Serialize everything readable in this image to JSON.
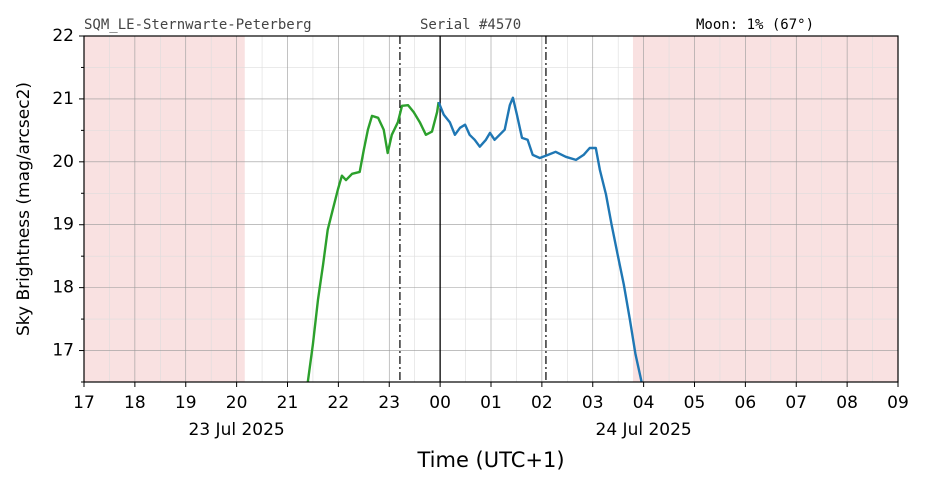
{
  "chart_data": {
    "type": "line",
    "header": {
      "location": "SQM_LE-Sternwarte-Peterberg",
      "serial": "Serial #4570",
      "moon": "Moon: 1% (67°)"
    },
    "xlabel": "Time (UTC+1)",
    "ylabel": "Sky Brightness (mag/arcsec2)",
    "xlim": [
      17,
      33
    ],
    "ylim": [
      16.5,
      22
    ],
    "xticks": [
      17,
      18,
      19,
      20,
      21,
      22,
      23,
      {
        "value": 24,
        "label": "00"
      },
      {
        "value": 25,
        "label": "01"
      },
      {
        "value": 26,
        "label": "02"
      },
      {
        "value": 27,
        "label": "03"
      },
      {
        "value": 28,
        "label": "04"
      },
      {
        "value": 29,
        "label": "05"
      },
      {
        "value": 30,
        "label": "06"
      },
      {
        "value": 31,
        "label": "07"
      },
      {
        "value": 32,
        "label": "08"
      },
      {
        "value": 33,
        "label": "09"
      }
    ],
    "yticks": [
      17,
      18,
      19,
      20,
      21,
      22
    ],
    "yminor": [
      16.5,
      17.5,
      18.5,
      19.5,
      20.5,
      21.5
    ],
    "xminor": [
      17.5,
      18.5,
      19.5,
      20.5,
      21.5,
      22.5,
      23.5,
      24.5,
      25.5,
      26.5,
      27.5,
      28.5,
      29.5,
      30.5,
      31.5,
      32.5
    ],
    "grid": true,
    "date_labels": [
      {
        "x": 20,
        "text": "23 Jul 2025"
      },
      {
        "x": 28,
        "text": "24 Jul 2025"
      }
    ],
    "shaded": [
      {
        "start": 17,
        "end": 20.16
      },
      {
        "start": 27.79,
        "end": 33
      }
    ],
    "shade_color": "#f9e1e1",
    "vlines": [
      {
        "x": 23.21,
        "style": "dashdot"
      },
      {
        "x": 24,
        "style": "solid"
      },
      {
        "x": 26.08,
        "style": "dashdot"
      }
    ],
    "series": [
      {
        "color": "#2ca02c",
        "x": [
          21.4,
          21.5,
          21.6,
          21.7,
          21.79,
          21.89,
          21.99,
          22.07,
          22.15,
          22.27,
          22.42,
          22.5,
          22.58,
          22.66,
          22.78,
          22.89,
          22.97,
          23.05,
          23.17,
          23.25,
          23.37,
          23.48,
          23.6,
          23.72,
          23.84,
          23.94,
          23.97
        ],
        "values": [
          16.5,
          17.1,
          17.81,
          18.37,
          18.92,
          19.24,
          19.56,
          19.78,
          19.71,
          19.81,
          19.84,
          20.19,
          20.51,
          20.73,
          20.7,
          20.51,
          20.14,
          20.43,
          20.63,
          20.89,
          20.9,
          20.79,
          20.63,
          20.43,
          20.48,
          20.79,
          20.95
        ]
      },
      {
        "color": "#1f77b4",
        "x": [
          23.97,
          24.07,
          24.19,
          24.29,
          24.39,
          24.49,
          24.58,
          24.68,
          24.78,
          24.9,
          24.98,
          25.07,
          25.17,
          25.27,
          25.37,
          25.43,
          25.51,
          25.61,
          25.72,
          25.82,
          25.96,
          26.12,
          26.27,
          26.47,
          26.67,
          26.82,
          26.94,
          27.06,
          27.14,
          27.26,
          27.37,
          27.49,
          27.61,
          27.73,
          27.84,
          27.96
        ],
        "values": [
          20.95,
          20.75,
          20.63,
          20.43,
          20.54,
          20.59,
          20.43,
          20.35,
          20.24,
          20.35,
          20.46,
          20.35,
          20.43,
          20.51,
          20.9,
          21.02,
          20.75,
          20.38,
          20.35,
          20.11,
          20.06,
          20.11,
          20.16,
          20.08,
          20.03,
          20.11,
          20.22,
          20.22,
          19.87,
          19.48,
          19.0,
          18.52,
          18.05,
          17.49,
          16.94,
          16.5
        ]
      }
    ]
  }
}
